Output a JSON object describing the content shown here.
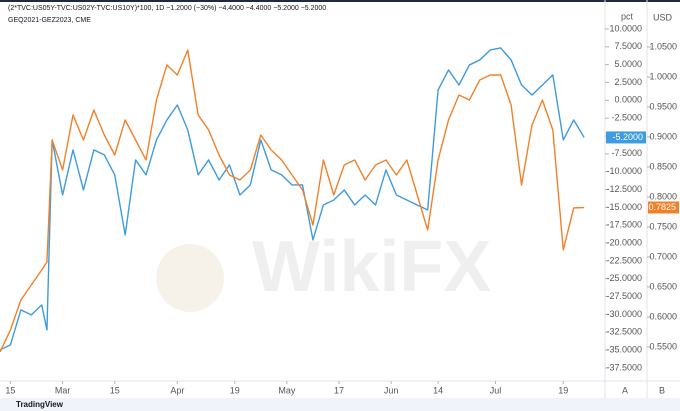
{
  "chart_data": {
    "type": "line",
    "header": "(2*TVC:US05Y-TVC:US02Y-TVC:US10Y)*100, 1D  −1.2000 (−30%)  −4.4000  −4.4000  −5.2000  −5.2000",
    "subtitle": "GEQ2021-GEZ2023, CME",
    "y_axis_label": "pct",
    "y2_axis_label": "USD",
    "watermark": "WikiFX",
    "footer": "TradingView",
    "scale_buttons": [
      "A",
      "B"
    ],
    "x": [
      0,
      2,
      4,
      6,
      8,
      9,
      10,
      12,
      14,
      16,
      18,
      20,
      22,
      24,
      26,
      28,
      30,
      32,
      34,
      36,
      38,
      40,
      42,
      44,
      46,
      48,
      50,
      52,
      54,
      56,
      58,
      60,
      62,
      64,
      66,
      68,
      70,
      72,
      74,
      76,
      78,
      80,
      82,
      84,
      86,
      88,
      90,
      92,
      94,
      96,
      98,
      100,
      102,
      104,
      106,
      108,
      110,
      112
    ],
    "xlim": [
      0,
      116
    ],
    "xticks": [
      {
        "value": 2,
        "label": "15"
      },
      {
        "value": 12,
        "label": "Mar"
      },
      {
        "value": 22,
        "label": "15"
      },
      {
        "value": 34,
        "label": "Apr"
      },
      {
        "value": 45,
        "label": "19"
      },
      {
        "value": 55,
        "label": "May"
      },
      {
        "value": 65,
        "label": "17"
      },
      {
        "value": 75,
        "label": "Jun"
      },
      {
        "value": 84,
        "label": "14"
      },
      {
        "value": 95,
        "label": "Jul"
      },
      {
        "value": 108,
        "label": "19"
      }
    ],
    "ylim": [
      -39.19,
      14.06
    ],
    "yticks": [
      {
        "value": 10,
        "label": "10.0000"
      },
      {
        "value": 7.5,
        "label": "7.5000"
      },
      {
        "value": 5,
        "label": "5.0000"
      },
      {
        "value": 2.5,
        "label": "2.5000"
      },
      {
        "value": 0,
        "label": "0.0000"
      },
      {
        "value": -2.5,
        "label": "-2.5000"
      },
      {
        "value": -5,
        "label": "-5.0000"
      },
      {
        "value": -7.5,
        "label": "-7.5000"
      },
      {
        "value": -10,
        "label": "-10.0000"
      },
      {
        "value": -12.5,
        "label": "-12.5000"
      },
      {
        "value": -15,
        "label": "-15.0000"
      },
      {
        "value": -17.5,
        "label": "-17.5000"
      },
      {
        "value": -20,
        "label": "-20.0000"
      },
      {
        "value": -22.5,
        "label": "-22.5000"
      },
      {
        "value": -25,
        "label": "-25.0000"
      },
      {
        "value": -27.5,
        "label": "-27.5000"
      },
      {
        "value": -30,
        "label": "-30.0000"
      },
      {
        "value": -32.5,
        "label": "-32.5000"
      },
      {
        "value": -35,
        "label": "-35.0000"
      },
      {
        "value": -37.5,
        "label": "-37.5000"
      }
    ],
    "y2lim": [
      0.495,
      1.1283
    ],
    "y2ticks": [
      {
        "value": 1.05,
        "label": "1.0500"
      },
      {
        "value": 1.0,
        "label": "1.0000"
      },
      {
        "value": 0.95,
        "label": "0.9500"
      },
      {
        "value": 0.9,
        "label": "0.9000"
      },
      {
        "value": 0.85,
        "label": "0.8500"
      },
      {
        "value": 0.8,
        "label": "0.8000"
      },
      {
        "value": 0.75,
        "label": "0.7500"
      },
      {
        "value": 0.7,
        "label": "0.7000"
      },
      {
        "value": 0.65,
        "label": "0.6500"
      },
      {
        "value": 0.6,
        "label": "0.6000"
      },
      {
        "value": 0.55,
        "label": "0.5500"
      }
    ],
    "grid": false,
    "series": [
      {
        "color": "#3d9be0",
        "axis": "y",
        "last_value_label": "-5.2000",
        "values": [
          -34.97,
          -34.27,
          -29.37,
          -30.07,
          -28.67,
          -32.17,
          -5.55,
          -13.26,
          -6.95,
          -12.56,
          -6.95,
          -7.65,
          -10.45,
          -18.86,
          -8.35,
          -10.45,
          -5.55,
          -2.75,
          -0.65,
          -4.15,
          -10.45,
          -8.35,
          -11.16,
          -9.05,
          -13.26,
          -11.86,
          -5.55,
          -9.75,
          -10.45,
          -11.86,
          -11.86,
          -19.56,
          -14.66,
          -13.96,
          -12.56,
          -14.66,
          -13.26,
          -14.66,
          -9.75,
          -13.26,
          -13.96,
          -14.66,
          -15.36,
          1.45,
          4.26,
          2.15,
          4.96,
          5.66,
          7.06,
          7.34,
          5.66,
          2.15,
          0.75,
          2.15,
          3.56,
          -5.55,
          -2.75,
          -5.2
        ]
      },
      {
        "color": "#f0812a",
        "axis": "y2",
        "last_value_label": "0.7825",
        "values": [
          0.5417,
          0.5783,
          0.6283,
          0.6533,
          0.6783,
          0.6917,
          0.895,
          0.845,
          0.9367,
          0.895,
          0.945,
          0.9033,
          0.87,
          0.9283,
          0.895,
          0.8617,
          0.9617,
          1.02,
          1.0033,
          1.045,
          0.9367,
          0.9117,
          0.87,
          0.8367,
          0.8283,
          0.845,
          0.9033,
          0.8783,
          0.8617,
          0.8367,
          0.8117,
          0.7533,
          0.8617,
          0.8033,
          0.8533,
          0.8617,
          0.8283,
          0.8533,
          0.8617,
          0.8367,
          0.8617,
          0.8033,
          0.745,
          0.8617,
          0.9283,
          0.97,
          0.9617,
          0.995,
          1.0033,
          1.0033,
          0.9533,
          0.82,
          0.92,
          0.9617,
          0.9117,
          0.7117,
          0.7817,
          0.7825
        ]
      }
    ]
  }
}
